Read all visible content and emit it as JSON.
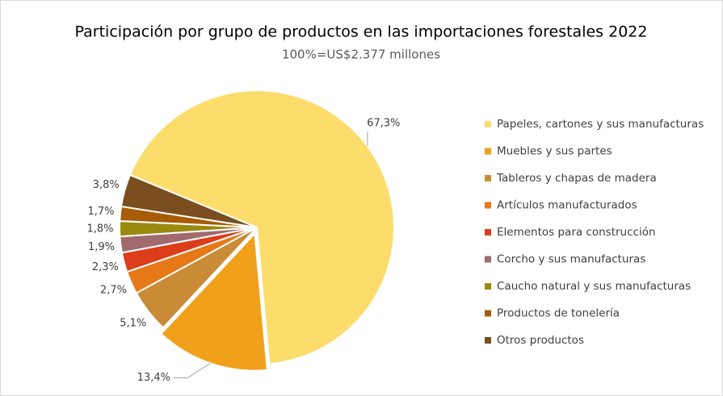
{
  "chart_data": {
    "type": "pie",
    "title": "Participación por grupo de productos en las importaciones forestales 2022",
    "subtitle": "100%=US$2.377 millones",
    "categories": [
      "Papeles, cartones y sus manufacturas",
      "Muebles y sus partes",
      "Tableros y chapas de madera",
      "Artículos manufacturados",
      "Elementos para construcción",
      "Corcho y sus manufacturas",
      "Caucho natural y sus manufacturas",
      "Productos de tonelería",
      "Otros productos"
    ],
    "values": [
      67.3,
      13.4,
      5.1,
      2.7,
      2.3,
      1.9,
      1.8,
      1.7,
      3.8
    ],
    "value_labels": [
      "67,3%",
      "13,4%",
      "5,1%",
      "2,7%",
      "2,3%",
      "1,9%",
      "1,8%",
      "1,7%",
      "3,8%"
    ],
    "colors": [
      "#fcdc6b",
      "#f0a01a",
      "#c98b35",
      "#e67817",
      "#dc3d1a",
      "#a06a6e",
      "#9a8a10",
      "#a85c07",
      "#7a4e1e"
    ],
    "legend": "right"
  }
}
